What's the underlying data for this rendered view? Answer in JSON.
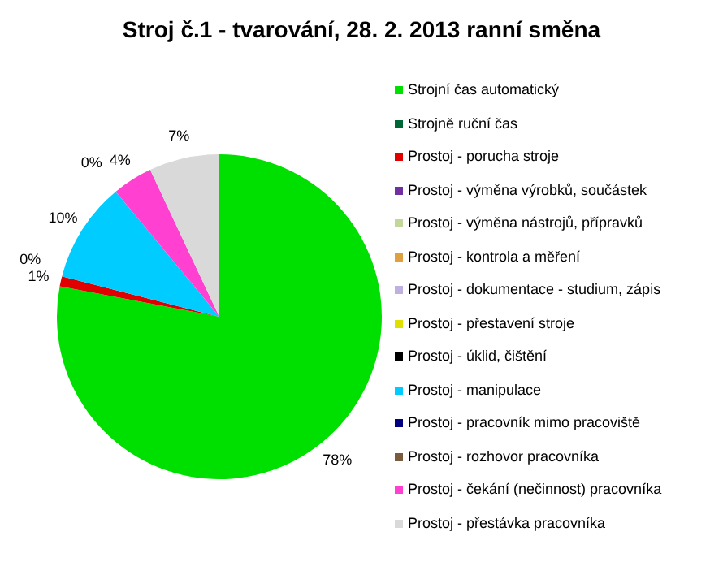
{
  "chart_data": {
    "type": "pie",
    "title": "Stroj č.1 - tvarování, 28. 2. 2013 ranní směna",
    "categories": [
      "Strojní čas automatický",
      "Strojně ruční čas",
      "Prostoj - porucha stroje",
      "Prostoj - výměna výrobků, součástek",
      "Prostoj - výměna nástrojů, přípravků",
      "Prostoj - kontrola a měření",
      "Prostoj - dokumentace - studium, zápis",
      "Prostoj - přestavení stroje",
      "Prostoj - úklid, čištění",
      "Prostoj - manipulace",
      "Prostoj - pracovník mimo pracoviště",
      "Prostoj - rozhovor pracovníka",
      "Prostoj - čekání (nečinnost) pracovníka",
      "Prostoj - přestávka pracovníka"
    ],
    "values": [
      78,
      0,
      1,
      0,
      0,
      0,
      0,
      0,
      0,
      10,
      0,
      0,
      4,
      7
    ],
    "value_labels": [
      "78%",
      null,
      "1%",
      null,
      null,
      null,
      null,
      null,
      "0%",
      "10%",
      null,
      "0%",
      "4%",
      "7%"
    ],
    "colors": [
      "#00e000",
      "#006633",
      "#e00000",
      "#7030a0",
      "#c4d79b",
      "#e0a040",
      "#c0b0e0",
      "#e0e000",
      "#000000",
      "#00ccff",
      "#000080",
      "#7a5c3c",
      "#ff40d0",
      "#d9d9d9"
    ],
    "legend": "right"
  }
}
